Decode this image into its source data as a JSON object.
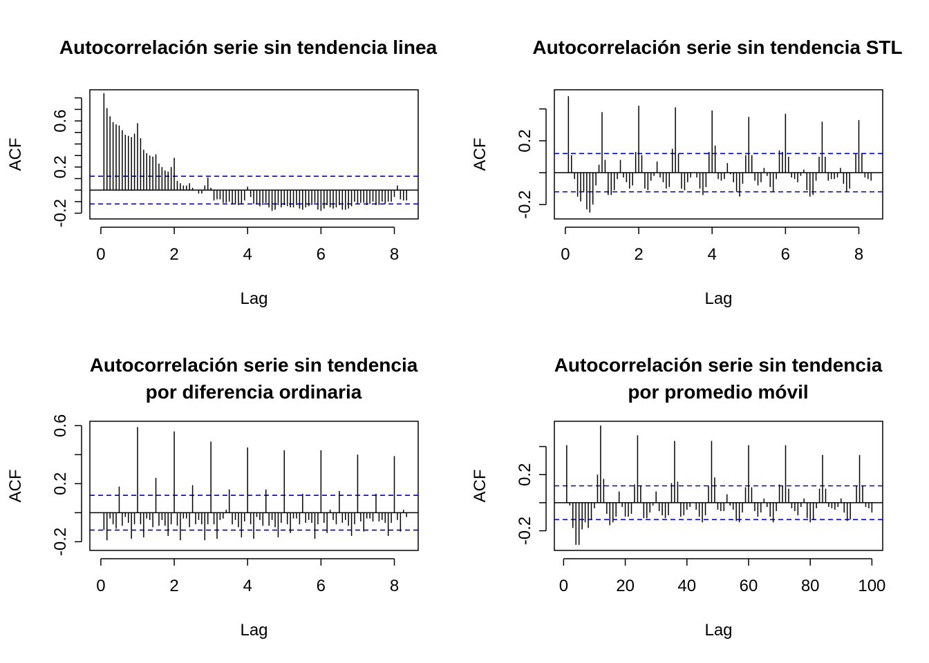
{
  "ci_color": "#0000cc",
  "bar_color": "#000000",
  "chart_data": [
    {
      "type": "bar",
      "title": [
        "Autocorrelación serie sin tendencia linea"
      ],
      "xlabel": "Lag",
      "ylabel": "ACF",
      "xlim": [
        -0.3,
        8.65
      ],
      "ylim": [
        -0.25,
        0.87
      ],
      "xticks": [
        0,
        2,
        4,
        6,
        8
      ],
      "xtick_labels": [
        "0",
        "2",
        "4",
        "6",
        "8"
      ],
      "yticks": [
        -0.2,
        -0.1,
        0,
        0.1,
        0.2,
        0.3,
        0.4,
        0.5,
        0.6,
        0.7,
        0.8
      ],
      "yticks_labeled": [
        -0.2,
        0.2,
        0.6
      ],
      "ytick_labels": [
        "-0.2",
        "0.2",
        "0.6"
      ],
      "ci": 0.12,
      "x": [
        0.0833,
        0.1667,
        0.25,
        0.3333,
        0.4167,
        0.5,
        0.5833,
        0.6667,
        0.75,
        0.8333,
        0.9167,
        1.0,
        1.0833,
        1.1667,
        1.25,
        1.3333,
        1.4167,
        1.5,
        1.5833,
        1.6667,
        1.75,
        1.8333,
        1.9167,
        2.0,
        2.0833,
        2.1667,
        2.25,
        2.3333,
        2.4167,
        2.5,
        2.5833,
        2.6667,
        2.75,
        2.8333,
        2.9167,
        3.0,
        3.0833,
        3.1667,
        3.25,
        3.3333,
        3.4167,
        3.5,
        3.5833,
        3.6667,
        3.75,
        3.8333,
        3.9167,
        4.0,
        4.0833,
        4.1667,
        4.25,
        4.3333,
        4.4167,
        4.5,
        4.5833,
        4.6667,
        4.75,
        4.8333,
        4.9167,
        5.0,
        5.0833,
        5.1667,
        5.25,
        5.3333,
        5.4167,
        5.5,
        5.5833,
        5.6667,
        5.75,
        5.8333,
        5.9167,
        6.0,
        6.0833,
        6.1667,
        6.25,
        6.3333,
        6.4167,
        6.5,
        6.5833,
        6.6667,
        6.75,
        6.8333,
        6.9167,
        7.0,
        7.0833,
        7.1667,
        7.25,
        7.3333,
        7.4167,
        7.5,
        7.5833,
        7.6667,
        7.75,
        7.8333,
        7.9167,
        8.0,
        8.0833,
        8.1667,
        8.25,
        8.3333
      ],
      "values": [
        0.84,
        0.71,
        0.64,
        0.59,
        0.57,
        0.56,
        0.52,
        0.48,
        0.47,
        0.46,
        0.49,
        0.58,
        0.45,
        0.35,
        0.32,
        0.3,
        0.29,
        0.31,
        0.23,
        0.2,
        0.17,
        0.16,
        0.2,
        0.28,
        0.08,
        0.06,
        0.04,
        0.04,
        0.06,
        0.02,
        0.0,
        -0.03,
        -0.03,
        0.04,
        0.11,
        0.02,
        -0.09,
        -0.08,
        -0.08,
        -0.11,
        -0.11,
        -0.1,
        -0.12,
        -0.12,
        -0.13,
        -0.12,
        -0.09,
        0.03,
        -0.06,
        -0.12,
        -0.12,
        -0.14,
        -0.13,
        -0.11,
        -0.15,
        -0.18,
        -0.17,
        -0.13,
        -0.15,
        -0.13,
        -0.14,
        -0.15,
        -0.15,
        -0.13,
        -0.16,
        -0.17,
        -0.15,
        -0.14,
        -0.13,
        -0.11,
        -0.17,
        -0.18,
        -0.16,
        -0.13,
        -0.15,
        -0.16,
        -0.15,
        -0.13,
        -0.17,
        -0.17,
        -0.16,
        -0.14,
        -0.1,
        -0.12,
        -0.11,
        -0.11,
        -0.13,
        -0.12,
        -0.1,
        -0.13,
        -0.13,
        -0.1,
        -0.12,
        -0.1,
        -0.1,
        -0.06,
        0.04,
        -0.08,
        -0.09,
        -0.09
      ]
    },
    {
      "type": "bar",
      "title": [
        "Autocorrelación serie sin tendencia STL"
      ],
      "xlabel": "Lag",
      "ylabel": "ACF",
      "xlim": [
        -0.3,
        8.65
      ],
      "ylim": [
        -0.29,
        0.52
      ],
      "xticks": [
        0,
        2,
        4,
        6,
        8
      ],
      "xtick_labels": [
        "0",
        "2",
        "4",
        "6",
        "8"
      ],
      "yticks": [
        -0.2,
        0,
        0.2,
        0.4
      ],
      "yticks_labeled": [
        -0.2,
        0.2
      ],
      "ytick_labels": [
        "-0.2",
        "0.2"
      ],
      "ci": 0.12,
      "x": [
        0.0833,
        0.1667,
        0.25,
        0.3333,
        0.4167,
        0.5,
        0.5833,
        0.6667,
        0.75,
        0.8333,
        0.9167,
        1.0,
        1.0833,
        1.1667,
        1.25,
        1.3333,
        1.4167,
        1.5,
        1.5833,
        1.6667,
        1.75,
        1.8333,
        1.9167,
        2.0,
        2.0833,
        2.1667,
        2.25,
        2.3333,
        2.4167,
        2.5,
        2.5833,
        2.6667,
        2.75,
        2.8333,
        2.9167,
        3.0,
        3.0833,
        3.1667,
        3.25,
        3.3333,
        3.4167,
        3.5,
        3.5833,
        3.6667,
        3.75,
        3.8333,
        3.9167,
        4.0,
        4.0833,
        4.1667,
        4.25,
        4.3333,
        4.4167,
        4.5,
        4.5833,
        4.6667,
        4.75,
        4.8333,
        4.9167,
        5.0,
        5.0833,
        5.1667,
        5.25,
        5.3333,
        5.4167,
        5.5,
        5.5833,
        5.6667,
        5.75,
        5.8333,
        5.9167,
        6.0,
        6.0833,
        6.1667,
        6.25,
        6.3333,
        6.4167,
        6.5,
        6.5833,
        6.6667,
        6.75,
        6.8333,
        6.9167,
        7.0,
        7.0833,
        7.1667,
        7.25,
        7.3333,
        7.4167,
        7.5,
        7.5833,
        7.6667,
        7.75,
        7.8333,
        7.9167,
        8.0,
        8.0833,
        8.1667,
        8.25,
        8.3333
      ],
      "values": [
        0.48,
        0.11,
        -0.04,
        -0.15,
        -0.18,
        -0.12,
        -0.23,
        -0.25,
        -0.2,
        -0.08,
        0.05,
        0.38,
        0.08,
        -0.14,
        -0.14,
        -0.11,
        -0.04,
        0.08,
        -0.03,
        -0.06,
        -0.1,
        -0.08,
        0.13,
        0.42,
        0.11,
        -0.1,
        -0.11,
        -0.05,
        -0.02,
        0.07,
        -0.03,
        -0.06,
        -0.1,
        -0.09,
        0.15,
        0.41,
        0.12,
        -0.1,
        -0.11,
        -0.06,
        -0.03,
        0.0,
        -0.03,
        -0.1,
        -0.14,
        -0.09,
        0.13,
        0.39,
        0.17,
        -0.04,
        -0.05,
        -0.04,
        0.06,
        -0.01,
        -0.06,
        -0.12,
        -0.15,
        -0.07,
        0.11,
        0.35,
        0.11,
        -0.05,
        -0.08,
        -0.06,
        0.03,
        -0.02,
        -0.09,
        -0.12,
        -0.04,
        0.14,
        0.13,
        0.37,
        0.1,
        -0.03,
        -0.04,
        -0.06,
        -0.02,
        0.02,
        -0.11,
        -0.15,
        -0.14,
        -0.05,
        0.1,
        0.32,
        0.1,
        -0.05,
        -0.04,
        -0.04,
        -0.03,
        0.03,
        -0.07,
        -0.12,
        -0.1,
        0.0,
        0.12,
        0.33,
        0.12,
        -0.03,
        -0.04,
        -0.05
      ]
    },
    {
      "type": "bar",
      "title": [
        "Autocorrelación serie sin tendencia",
        "por diferencia ordinaria"
      ],
      "xlabel": "Lag",
      "ylabel": "ACF",
      "xlim": [
        -0.3,
        8.65
      ],
      "ylim": [
        -0.26,
        0.63
      ],
      "xticks": [
        0,
        2,
        4,
        6,
        8
      ],
      "xtick_labels": [
        "0",
        "2",
        "4",
        "6",
        "8"
      ],
      "yticks": [
        -0.2,
        0,
        0.2,
        0.4,
        0.6
      ],
      "yticks_labeled": [
        -0.2,
        0.2,
        0.6
      ],
      "ytick_labels": [
        "-0.2",
        "0.2",
        "0.6"
      ],
      "ci": 0.12,
      "x": [
        0.0833,
        0.1667,
        0.25,
        0.3333,
        0.4167,
        0.5,
        0.5833,
        0.6667,
        0.75,
        0.8333,
        0.9167,
        1.0,
        1.0833,
        1.1667,
        1.25,
        1.3333,
        1.4167,
        1.5,
        1.5833,
        1.6667,
        1.75,
        1.8333,
        1.9167,
        2.0,
        2.0833,
        2.1667,
        2.25,
        2.3333,
        2.4167,
        2.5,
        2.5833,
        2.6667,
        2.75,
        2.8333,
        2.9167,
        3.0,
        3.0833,
        3.1667,
        3.25,
        3.3333,
        3.4167,
        3.5,
        3.5833,
        3.6667,
        3.75,
        3.8333,
        3.9167,
        4.0,
        4.0833,
        4.1667,
        4.25,
        4.3333,
        4.4167,
        4.5,
        4.5833,
        4.6667,
        4.75,
        4.8333,
        4.9167,
        5.0,
        5.0833,
        5.1667,
        5.25,
        5.3333,
        5.4167,
        5.5,
        5.5833,
        5.6667,
        5.75,
        5.8333,
        5.9167,
        6.0,
        6.0833,
        6.1667,
        6.25,
        6.3333,
        6.4167,
        6.5,
        6.5833,
        6.6667,
        6.75,
        6.8333,
        6.9167,
        7.0,
        7.0833,
        7.1667,
        7.25,
        7.3333,
        7.4167,
        7.5,
        7.5833,
        7.6667,
        7.75,
        7.8333,
        7.9167,
        8.0,
        8.0833,
        8.1667,
        8.25,
        8.3333
      ],
      "values": [
        -0.12,
        -0.19,
        -0.04,
        -0.08,
        -0.11,
        0.18,
        -0.09,
        -0.03,
        -0.07,
        -0.18,
        -0.08,
        0.59,
        -0.08,
        -0.17,
        -0.04,
        -0.05,
        -0.1,
        0.24,
        -0.09,
        -0.05,
        -0.09,
        -0.16,
        -0.08,
        0.56,
        -0.09,
        -0.19,
        -0.04,
        -0.04,
        -0.1,
        0.19,
        -0.08,
        -0.05,
        -0.08,
        -0.19,
        -0.08,
        0.49,
        -0.08,
        -0.18,
        -0.05,
        -0.04,
        0.02,
        0.16,
        -0.08,
        -0.05,
        -0.1,
        -0.17,
        -0.06,
        0.45,
        -0.08,
        -0.18,
        -0.03,
        -0.05,
        -0.09,
        0.16,
        -0.09,
        -0.05,
        -0.1,
        -0.17,
        -0.07,
        0.43,
        -0.08,
        -0.14,
        -0.04,
        -0.04,
        -0.08,
        0.13,
        -0.07,
        -0.05,
        -0.07,
        -0.18,
        -0.08,
        0.43,
        -0.07,
        -0.14,
        0.02,
        -0.05,
        -0.08,
        0.15,
        -0.07,
        -0.05,
        -0.09,
        -0.16,
        -0.08,
        0.4,
        -0.06,
        -0.13,
        -0.04,
        -0.04,
        -0.06,
        0.13,
        -0.06,
        -0.05,
        -0.07,
        -0.16,
        -0.07,
        0.39,
        -0.05,
        -0.13,
        0.02,
        -0.03
      ]
    },
    {
      "type": "bar",
      "title": [
        "Autocorrelación serie sin tendencia",
        "por promedio móvil"
      ],
      "xlabel": "Lag",
      "ylabel": "ACF",
      "xlim": [
        -3,
        103.5
      ],
      "ylim": [
        -0.34,
        0.58
      ],
      "xticks": [
        0,
        20,
        40,
        60,
        80,
        100
      ],
      "xtick_labels": [
        "0",
        "20",
        "40",
        "60",
        "80",
        "100"
      ],
      "yticks": [
        -0.2,
        0,
        0.2,
        0.4
      ],
      "yticks_labeled": [
        -0.2,
        0.2
      ],
      "ytick_labels": [
        "-0.2",
        "0.2"
      ],
      "ci": 0.12,
      "x": [
        1,
        2,
        3,
        4,
        5,
        6,
        7,
        8,
        9,
        10,
        11,
        12,
        13,
        14,
        15,
        16,
        17,
        18,
        19,
        20,
        21,
        22,
        23,
        24,
        25,
        26,
        27,
        28,
        29,
        30,
        31,
        32,
        33,
        34,
        35,
        36,
        37,
        38,
        39,
        40,
        41,
        42,
        43,
        44,
        45,
        46,
        47,
        48,
        49,
        50,
        51,
        52,
        53,
        54,
        55,
        56,
        57,
        58,
        59,
        60,
        61,
        62,
        63,
        64,
        65,
        66,
        67,
        68,
        69,
        70,
        71,
        72,
        73,
        74,
        75,
        76,
        77,
        78,
        79,
        80,
        81,
        82,
        83,
        84,
        85,
        86,
        87,
        88,
        89,
        90,
        91,
        92,
        93,
        94,
        95,
        96,
        97,
        98,
        99,
        100
      ],
      "values": [
        0.41,
        -0.02,
        -0.18,
        -0.3,
        -0.3,
        -0.19,
        -0.14,
        -0.18,
        -0.12,
        -0.04,
        0.2,
        0.55,
        0.17,
        -0.08,
        -0.16,
        -0.14,
        -0.1,
        0.08,
        -0.03,
        -0.1,
        -0.1,
        -0.08,
        0.13,
        0.48,
        0.12,
        -0.11,
        -0.11,
        -0.07,
        -0.02,
        0.08,
        -0.06,
        -0.09,
        -0.11,
        -0.09,
        0.14,
        0.44,
        0.15,
        -0.1,
        -0.09,
        -0.05,
        -0.03,
        0.0,
        -0.05,
        -0.1,
        -0.14,
        -0.09,
        0.12,
        0.44,
        0.18,
        -0.05,
        -0.06,
        -0.06,
        0.06,
        -0.02,
        -0.05,
        -0.13,
        -0.14,
        -0.07,
        0.11,
        0.41,
        0.11,
        -0.06,
        -0.1,
        -0.07,
        0.03,
        -0.03,
        -0.1,
        -0.14,
        -0.06,
        0.13,
        0.12,
        0.41,
        0.1,
        -0.04,
        -0.06,
        -0.09,
        -0.03,
        0.03,
        -0.11,
        -0.14,
        -0.12,
        -0.04,
        0.1,
        0.34,
        0.1,
        -0.03,
        -0.04,
        -0.05,
        -0.03,
        0.03,
        -0.07,
        -0.13,
        -0.12,
        0.0,
        0.12,
        0.34,
        0.12,
        -0.03,
        -0.04,
        -0.07
      ]
    }
  ]
}
